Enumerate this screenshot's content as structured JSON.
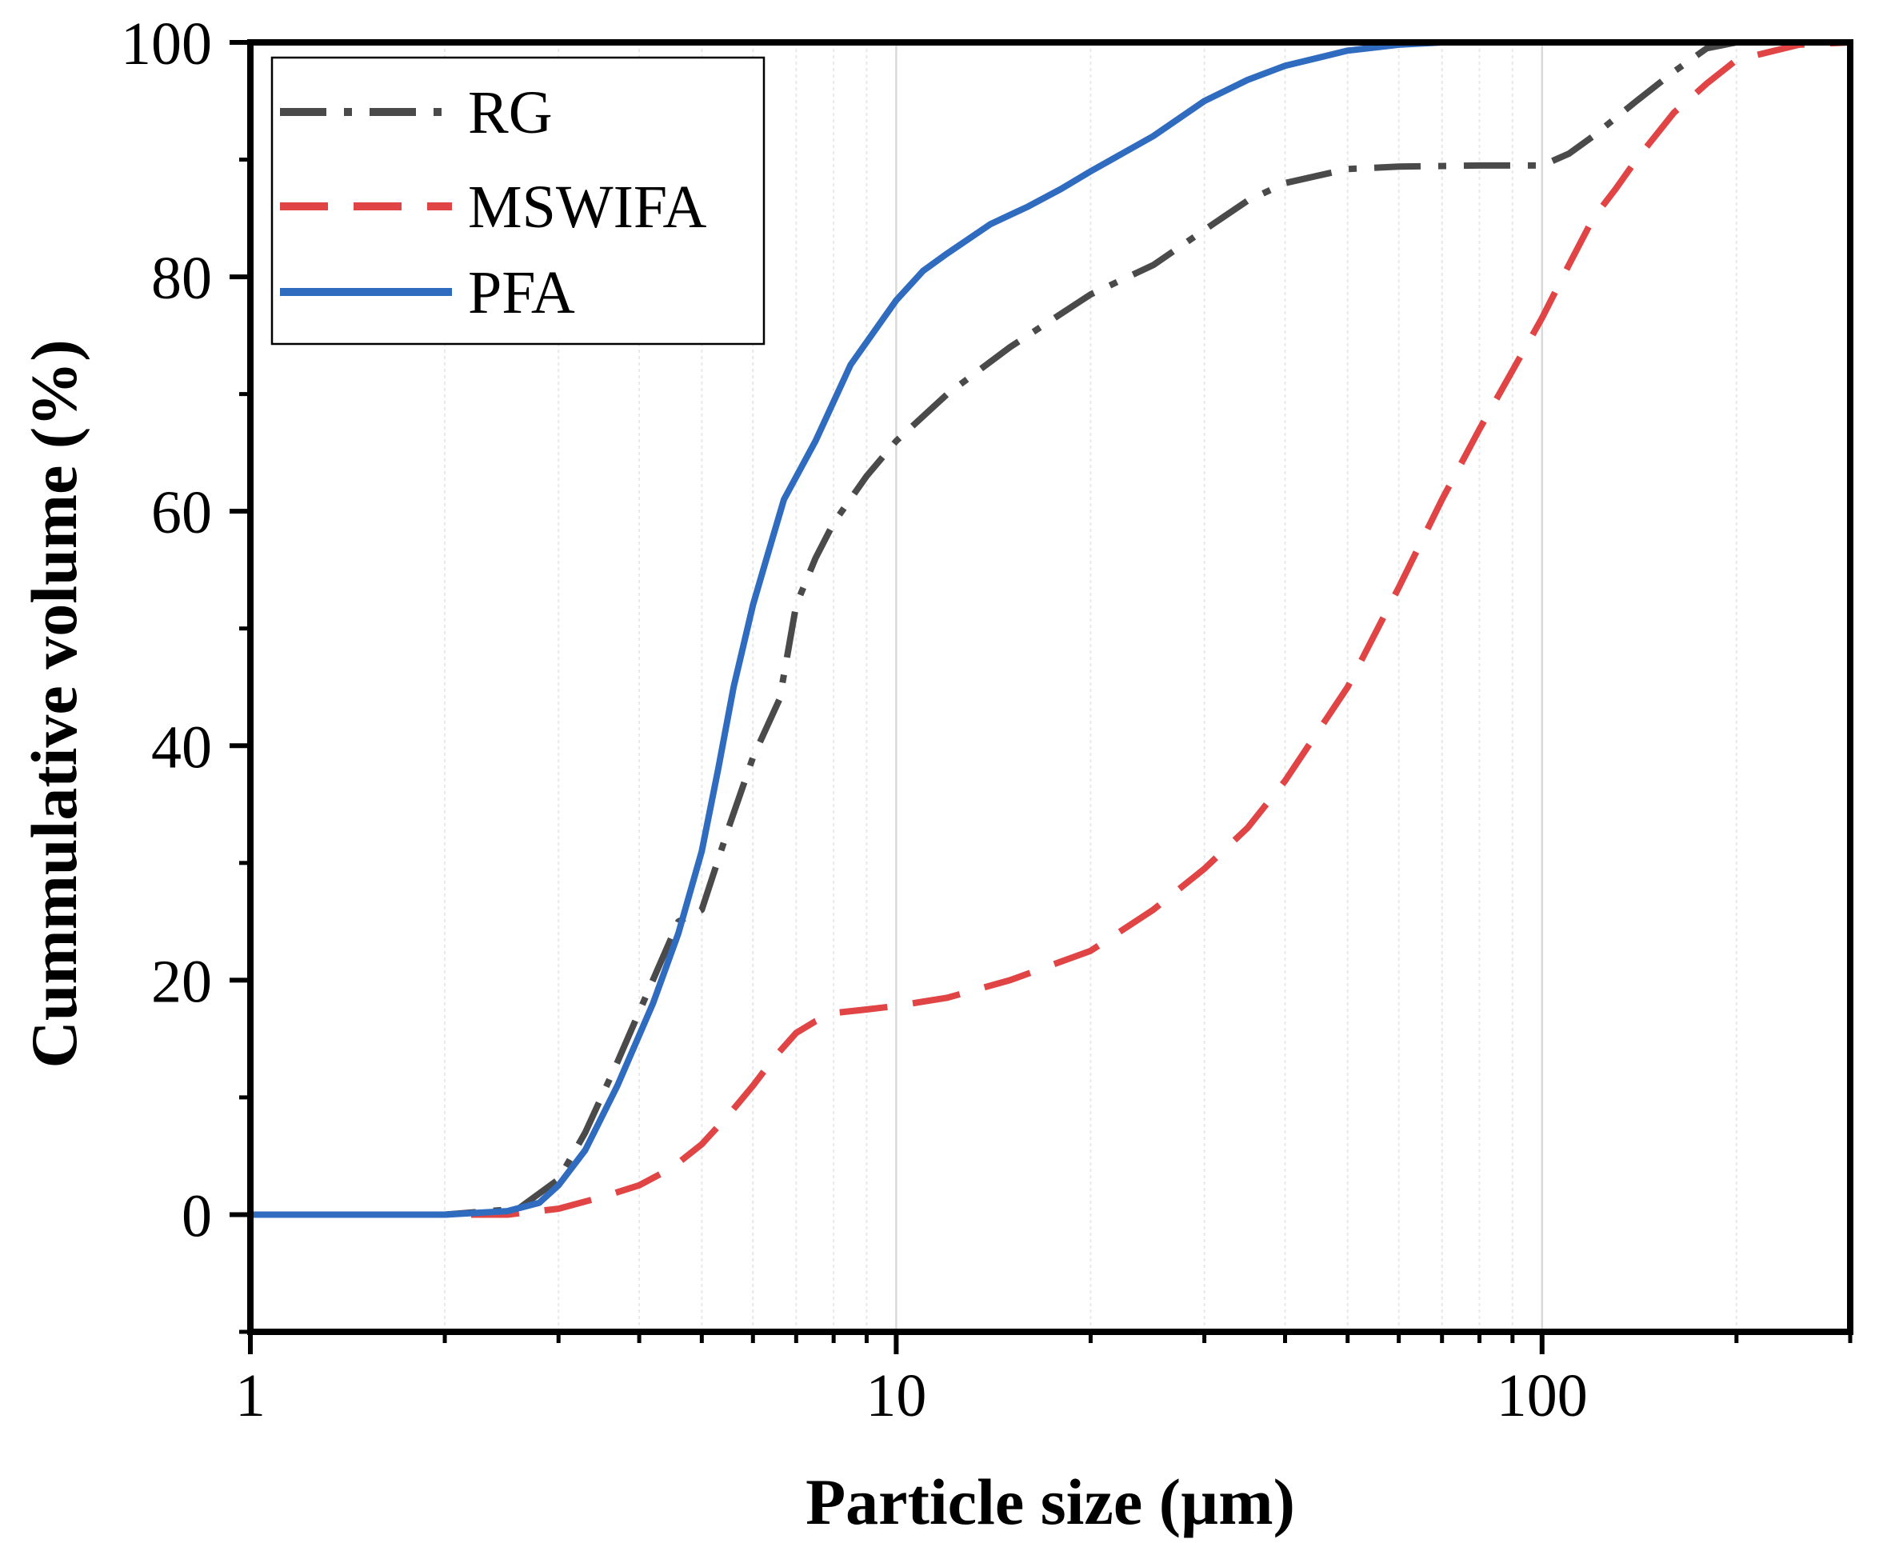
{
  "chart_data": {
    "type": "line",
    "title": "",
    "xlabel": "Particle size (µm)",
    "ylabel": "Cummulative volume (%)",
    "x_scale": "log",
    "xlim": [
      1,
      300
    ],
    "ylim": [
      -10,
      100
    ],
    "x_ticks": [
      1,
      10,
      100
    ],
    "x_tick_labels": [
      "1",
      "10",
      "100"
    ],
    "y_ticks": [
      0,
      20,
      40,
      60,
      80,
      100
    ],
    "y_tick_labels": [
      "0",
      "20",
      "40",
      "60",
      "80",
      "100"
    ],
    "grid": "vertical minor gridlines",
    "legend_position": "top-left",
    "series": [
      {
        "name": "RG",
        "style": "dash-dot",
        "color": "#4a4a4a",
        "x": [
          1,
          2,
          2.6,
          3.0,
          3.3,
          3.7,
          4.2,
          4.6,
          5.0,
          5.5,
          6.0,
          6.6,
          7.0,
          7.5,
          8.0,
          9.0,
          10,
          12,
          15,
          20,
          25,
          30,
          35,
          40,
          50,
          60,
          80,
          100,
          110,
          120,
          140,
          160,
          180,
          200,
          300
        ],
        "y": [
          0,
          0,
          0.5,
          3,
          7,
          13,
          20,
          25,
          26,
          33,
          39,
          44,
          52,
          56,
          59,
          63,
          66,
          70,
          74,
          78.5,
          81,
          84,
          86.5,
          88,
          89.2,
          89.4,
          89.5,
          89.5,
          90.5,
          92,
          95,
          97.5,
          99.5,
          100,
          100
        ]
      },
      {
        "name": "MSWIFA",
        "style": "dashed",
        "color": "#e04444",
        "x": [
          1,
          2,
          2.5,
          3.0,
          3.5,
          4.0,
          4.5,
          5.0,
          5.5,
          6.0,
          6.5,
          7.0,
          7.5,
          8.0,
          9.0,
          10,
          12,
          15,
          20,
          25,
          30,
          35,
          40,
          50,
          60,
          70,
          80,
          90,
          100,
          110,
          120,
          130,
          140,
          160,
          180,
          200,
          250,
          300
        ],
        "y": [
          0,
          0,
          0,
          0.5,
          1.5,
          2.5,
          4,
          6,
          8.5,
          11,
          13.5,
          15.5,
          16.5,
          17.2,
          17.5,
          17.8,
          18.5,
          20,
          22.5,
          26,
          29.5,
          33,
          37,
          45,
          53.5,
          61,
          67,
          72,
          76.5,
          81,
          85,
          87.5,
          90,
          94,
          96.5,
          98.5,
          99.8,
          100
        ]
      },
      {
        "name": "PFA",
        "style": "solid",
        "color": "#2f6bbf",
        "x": [
          1,
          2,
          2.5,
          2.8,
          3.0,
          3.3,
          3.7,
          4.2,
          4.6,
          5.0,
          5.3,
          5.6,
          6.0,
          6.3,
          6.7,
          7.5,
          8.5,
          10,
          11,
          12,
          14,
          16,
          18,
          20,
          25,
          30,
          35,
          40,
          50,
          60,
          70,
          90
        ],
        "y": [
          0,
          0,
          0.3,
          1,
          2.5,
          5.5,
          11,
          18,
          24,
          31,
          38,
          45,
          52,
          56,
          61,
          66,
          72.5,
          78,
          80.5,
          82,
          84.5,
          86,
          87.5,
          89,
          92,
          95,
          96.8,
          98,
          99.3,
          99.8,
          100,
          100
        ]
      }
    ]
  }
}
